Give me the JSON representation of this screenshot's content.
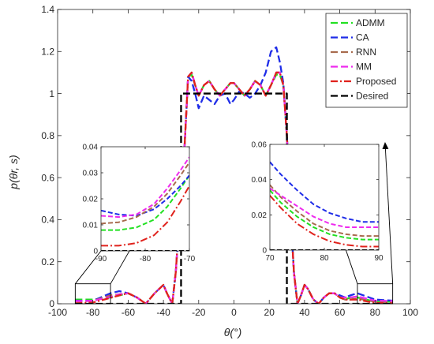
{
  "chart_data": [
    {
      "panel": "main",
      "type": "line",
      "xlabel": "θ(°)",
      "ylabel": "p(θr, s)",
      "xlim": [
        -100,
        100
      ],
      "ylim": [
        0,
        1.4
      ],
      "xticks": [
        -100,
        -80,
        -60,
        -40,
        -20,
        0,
        20,
        40,
        60,
        80,
        100
      ],
      "yticks": [
        0,
        0.2,
        0.4,
        0.6,
        0.8,
        1,
        1.2,
        1.4
      ],
      "xtick_labels": [
        "-100",
        "-80",
        "-60",
        "-40",
        "-20",
        "0",
        "20",
        "40",
        "60",
        "80",
        "100"
      ],
      "ytick_labels": [
        "0",
        "0.2",
        "0.4",
        "0.6",
        "0.8",
        "1",
        "1.2",
        "1.4"
      ],
      "grid": false,
      "legend_position": "top-right",
      "series": [
        {
          "name": "ADMM",
          "color": "#22e022",
          "dash": "dashed",
          "x": [
            -90,
            -80,
            -70,
            -65,
            -60,
            -55,
            -50,
            -45,
            -40,
            -38,
            -35,
            -33,
            -31,
            -28,
            -26,
            -24,
            -22,
            -20,
            -17,
            -14,
            -11,
            -8,
            -5,
            -2,
            0,
            3,
            6,
            9,
            12,
            15,
            18,
            21,
            24,
            26,
            28,
            30,
            32,
            34,
            36,
            38,
            40,
            42,
            45,
            48,
            51,
            54,
            57,
            60,
            63,
            66,
            70,
            80,
            90
          ],
          "y": [
            0.02,
            0.02,
            0.03,
            0.04,
            0.05,
            0.03,
            0.0,
            0.05,
            0.09,
            0.05,
            0.0,
            0.15,
            0.4,
            0.75,
            1.08,
            1.09,
            1.04,
            0.99,
            1.04,
            1.06,
            1.02,
            0.99,
            1.02,
            1.05,
            1.05,
            1.02,
            0.99,
            1.02,
            1.06,
            1.04,
            0.99,
            1.04,
            1.09,
            1.09,
            1.04,
            0.8,
            0.45,
            0.15,
            0.0,
            0.04,
            0.09,
            0.07,
            0.02,
            0.0,
            0.03,
            0.05,
            0.05,
            0.03,
            0.02,
            0.03,
            0.03,
            0.01,
            0.01
          ]
        },
        {
          "name": "CA",
          "color": "#1f2de8",
          "dash": "dashed",
          "x": [
            -90,
            -80,
            -70,
            -65,
            -60,
            -55,
            -50,
            -45,
            -40,
            -38,
            -35,
            -33,
            -31,
            -28,
            -26,
            -24,
            -22,
            -20,
            -17,
            -14,
            -11,
            -8,
            -5,
            -2,
            0,
            3,
            6,
            9,
            12,
            15,
            18,
            21,
            24,
            26,
            28,
            30,
            32,
            34,
            36,
            38,
            40,
            42,
            45,
            48,
            51,
            54,
            57,
            60,
            63,
            66,
            70,
            80,
            90
          ],
          "y": [
            0.015,
            0.014,
            0.05,
            0.06,
            0.05,
            0.03,
            0.0,
            0.05,
            0.09,
            0.05,
            0.0,
            0.15,
            0.4,
            0.75,
            1.08,
            1.06,
            1.0,
            0.93,
            0.99,
            0.97,
            0.95,
            0.99,
            1.0,
            0.95,
            0.97,
            1.01,
            1.0,
            0.98,
            1.0,
            1.04,
            1.1,
            1.2,
            1.22,
            1.15,
            1.05,
            0.8,
            0.45,
            0.15,
            0.0,
            0.04,
            0.09,
            0.07,
            0.02,
            0.0,
            0.03,
            0.05,
            0.05,
            0.04,
            0.03,
            0.04,
            0.05,
            0.02,
            0.015
          ]
        },
        {
          "name": "RNN",
          "color": "#a86b4e",
          "dash": "dashed",
          "x": [
            -90,
            -80,
            -70,
            -65,
            -60,
            -55,
            -50,
            -45,
            -40,
            -38,
            -35,
            -33,
            -31,
            -28,
            -26,
            -24,
            -22,
            -20,
            -17,
            -14,
            -11,
            -8,
            -5,
            -2,
            0,
            3,
            6,
            9,
            12,
            15,
            18,
            21,
            24,
            26,
            28,
            30,
            32,
            34,
            36,
            38,
            40,
            42,
            45,
            48,
            51,
            54,
            57,
            60,
            63,
            66,
            70,
            80,
            90
          ],
          "y": [
            0.01,
            0.014,
            0.04,
            0.045,
            0.05,
            0.03,
            0.0,
            0.05,
            0.09,
            0.05,
            0.0,
            0.15,
            0.4,
            0.75,
            1.08,
            1.1,
            1.04,
            0.99,
            1.04,
            1.06,
            1.02,
            0.99,
            1.02,
            1.05,
            1.05,
            1.02,
            0.99,
            1.02,
            1.06,
            1.04,
            0.99,
            1.04,
            1.1,
            1.1,
            1.04,
            0.8,
            0.45,
            0.15,
            0.0,
            0.04,
            0.09,
            0.07,
            0.02,
            0.0,
            0.03,
            0.05,
            0.05,
            0.03,
            0.02,
            0.02,
            0.025,
            0.01,
            0.008
          ]
        },
        {
          "name": "MM",
          "color": "#ee2aee",
          "dash": "dashed",
          "x": [
            -90,
            -80,
            -70,
            -65,
            -60,
            -55,
            -50,
            -45,
            -40,
            -38,
            -35,
            -33,
            -31,
            -28,
            -26,
            -24,
            -22,
            -20,
            -17,
            -14,
            -11,
            -8,
            -5,
            -2,
            0,
            3,
            6,
            9,
            12,
            15,
            18,
            21,
            24,
            26,
            28,
            30,
            32,
            34,
            36,
            38,
            40,
            42,
            45,
            48,
            51,
            54,
            57,
            60,
            63,
            66,
            70,
            80,
            90
          ],
          "y": [
            0.013,
            0.014,
            0.033,
            0.045,
            0.05,
            0.03,
            0.0,
            0.05,
            0.09,
            0.05,
            0.0,
            0.15,
            0.4,
            0.75,
            1.08,
            1.1,
            1.04,
            0.99,
            1.04,
            1.06,
            1.02,
            0.99,
            1.02,
            1.05,
            1.05,
            1.02,
            0.99,
            1.02,
            1.06,
            1.04,
            0.99,
            1.04,
            1.1,
            1.1,
            1.04,
            0.8,
            0.45,
            0.15,
            0.0,
            0.04,
            0.09,
            0.07,
            0.02,
            0.0,
            0.03,
            0.05,
            0.05,
            0.03,
            0.03,
            0.03,
            0.035,
            0.015,
            0.013
          ]
        },
        {
          "name": "Proposed",
          "color": "#e0221c",
          "dash": "dashdot",
          "x": [
            -90,
            -80,
            -70,
            -65,
            -60,
            -55,
            -50,
            -45,
            -40,
            -38,
            -35,
            -33,
            -31,
            -28,
            -26,
            -24,
            -22,
            -20,
            -17,
            -14,
            -11,
            -8,
            -5,
            -2,
            0,
            3,
            6,
            9,
            12,
            15,
            18,
            21,
            24,
            26,
            28,
            30,
            32,
            34,
            36,
            38,
            40,
            42,
            45,
            48,
            51,
            54,
            57,
            60,
            63,
            66,
            70,
            80,
            90
          ],
          "y": [
            0.002,
            0.006,
            0.028,
            0.04,
            0.05,
            0.03,
            0.0,
            0.05,
            0.09,
            0.05,
            0.0,
            0.15,
            0.4,
            0.75,
            1.08,
            1.1,
            1.04,
            0.99,
            1.04,
            1.06,
            1.02,
            0.99,
            1.02,
            1.05,
            1.05,
            1.02,
            0.99,
            1.02,
            1.06,
            1.04,
            0.99,
            1.04,
            1.1,
            1.1,
            1.04,
            0.8,
            0.45,
            0.15,
            0.0,
            0.04,
            0.09,
            0.07,
            0.02,
            0.0,
            0.03,
            0.05,
            0.05,
            0.03,
            0.02,
            0.02,
            0.02,
            0.004,
            0.002
          ]
        },
        {
          "name": "Desired",
          "color": "#000000",
          "dash": "dashed",
          "x": [
            -90,
            -30,
            -30,
            30,
            30,
            90
          ],
          "y": [
            0,
            0,
            1,
            1,
            0,
            0
          ]
        }
      ]
    },
    {
      "panel": "inset-left",
      "type": "line",
      "xlim": [
        -90,
        -70
      ],
      "ylim": [
        0,
        0.04
      ],
      "xticks": [
        -90,
        -80,
        -70
      ],
      "yticks": [
        0,
        0.01,
        0.02,
        0.03,
        0.04
      ],
      "xtick_labels": [
        "-90",
        "-80",
        "-70"
      ],
      "ytick_labels": [
        "0",
        "0.01",
        "0.02",
        "0.03",
        "0.04"
      ],
      "series": [
        {
          "name": "ADMM",
          "x": [
            -90,
            -86,
            -82,
            -78,
            -75,
            -72,
            -70
          ],
          "y": [
            0.008,
            0.008,
            0.009,
            0.012,
            0.017,
            0.024,
            0.029
          ]
        },
        {
          "name": "CA",
          "x": [
            -90,
            -86,
            -82,
            -78,
            -75,
            -72,
            -70
          ],
          "y": [
            0.0155,
            0.014,
            0.0135,
            0.016,
            0.02,
            0.025,
            0.029
          ]
        },
        {
          "name": "RNN",
          "x": [
            -90,
            -86,
            -82,
            -78,
            -75,
            -72,
            -70
          ],
          "y": [
            0.0105,
            0.011,
            0.013,
            0.017,
            0.022,
            0.029,
            0.034
          ]
        },
        {
          "name": "MM",
          "x": [
            -90,
            -86,
            -82,
            -78,
            -75,
            -72,
            -70
          ],
          "y": [
            0.0135,
            0.013,
            0.014,
            0.018,
            0.024,
            0.031,
            0.036
          ]
        },
        {
          "name": "Proposed",
          "x": [
            -90,
            -86,
            -82,
            -78,
            -75,
            -72,
            -70
          ],
          "y": [
            0.002,
            0.002,
            0.003,
            0.006,
            0.011,
            0.019,
            0.025
          ]
        },
        {
          "name": "Desired",
          "x": [
            -90,
            -70
          ],
          "y": [
            0,
            0
          ]
        }
      ]
    },
    {
      "panel": "inset-right",
      "type": "line",
      "xlim": [
        70,
        90
      ],
      "ylim": [
        0,
        0.06
      ],
      "xticks": [
        70,
        80,
        90
      ],
      "yticks": [
        0,
        0.02,
        0.04,
        0.06
      ],
      "xtick_labels": [
        "70",
        "80",
        "90"
      ],
      "ytick_labels": [
        "0",
        "0.02",
        "0.04",
        "0.06"
      ],
      "series": [
        {
          "name": "ADMM",
          "x": [
            70,
            72,
            75,
            78,
            81,
            84,
            87,
            90
          ],
          "y": [
            0.034,
            0.027,
            0.019,
            0.013,
            0.009,
            0.007,
            0.006,
            0.006
          ]
        },
        {
          "name": "CA",
          "x": [
            70,
            72,
            75,
            78,
            81,
            84,
            87,
            90
          ],
          "y": [
            0.05,
            0.043,
            0.034,
            0.026,
            0.021,
            0.018,
            0.016,
            0.016
          ]
        },
        {
          "name": "RNN",
          "x": [
            70,
            72,
            75,
            78,
            81,
            84,
            87,
            90
          ],
          "y": [
            0.037,
            0.03,
            0.022,
            0.015,
            0.011,
            0.009,
            0.008,
            0.008
          ]
        },
        {
          "name": "MM",
          "x": [
            70,
            72,
            75,
            78,
            81,
            84,
            87,
            90
          ],
          "y": [
            0.035,
            0.031,
            0.025,
            0.019,
            0.015,
            0.013,
            0.013,
            0.013
          ]
        },
        {
          "name": "Proposed",
          "x": [
            70,
            72,
            75,
            78,
            81,
            84,
            87,
            90
          ],
          "y": [
            0.031,
            0.024,
            0.015,
            0.009,
            0.005,
            0.003,
            0.002,
            0.002
          ]
        },
        {
          "name": "Desired",
          "x": [
            70,
            90
          ],
          "y": [
            0,
            0
          ]
        }
      ]
    }
  ]
}
